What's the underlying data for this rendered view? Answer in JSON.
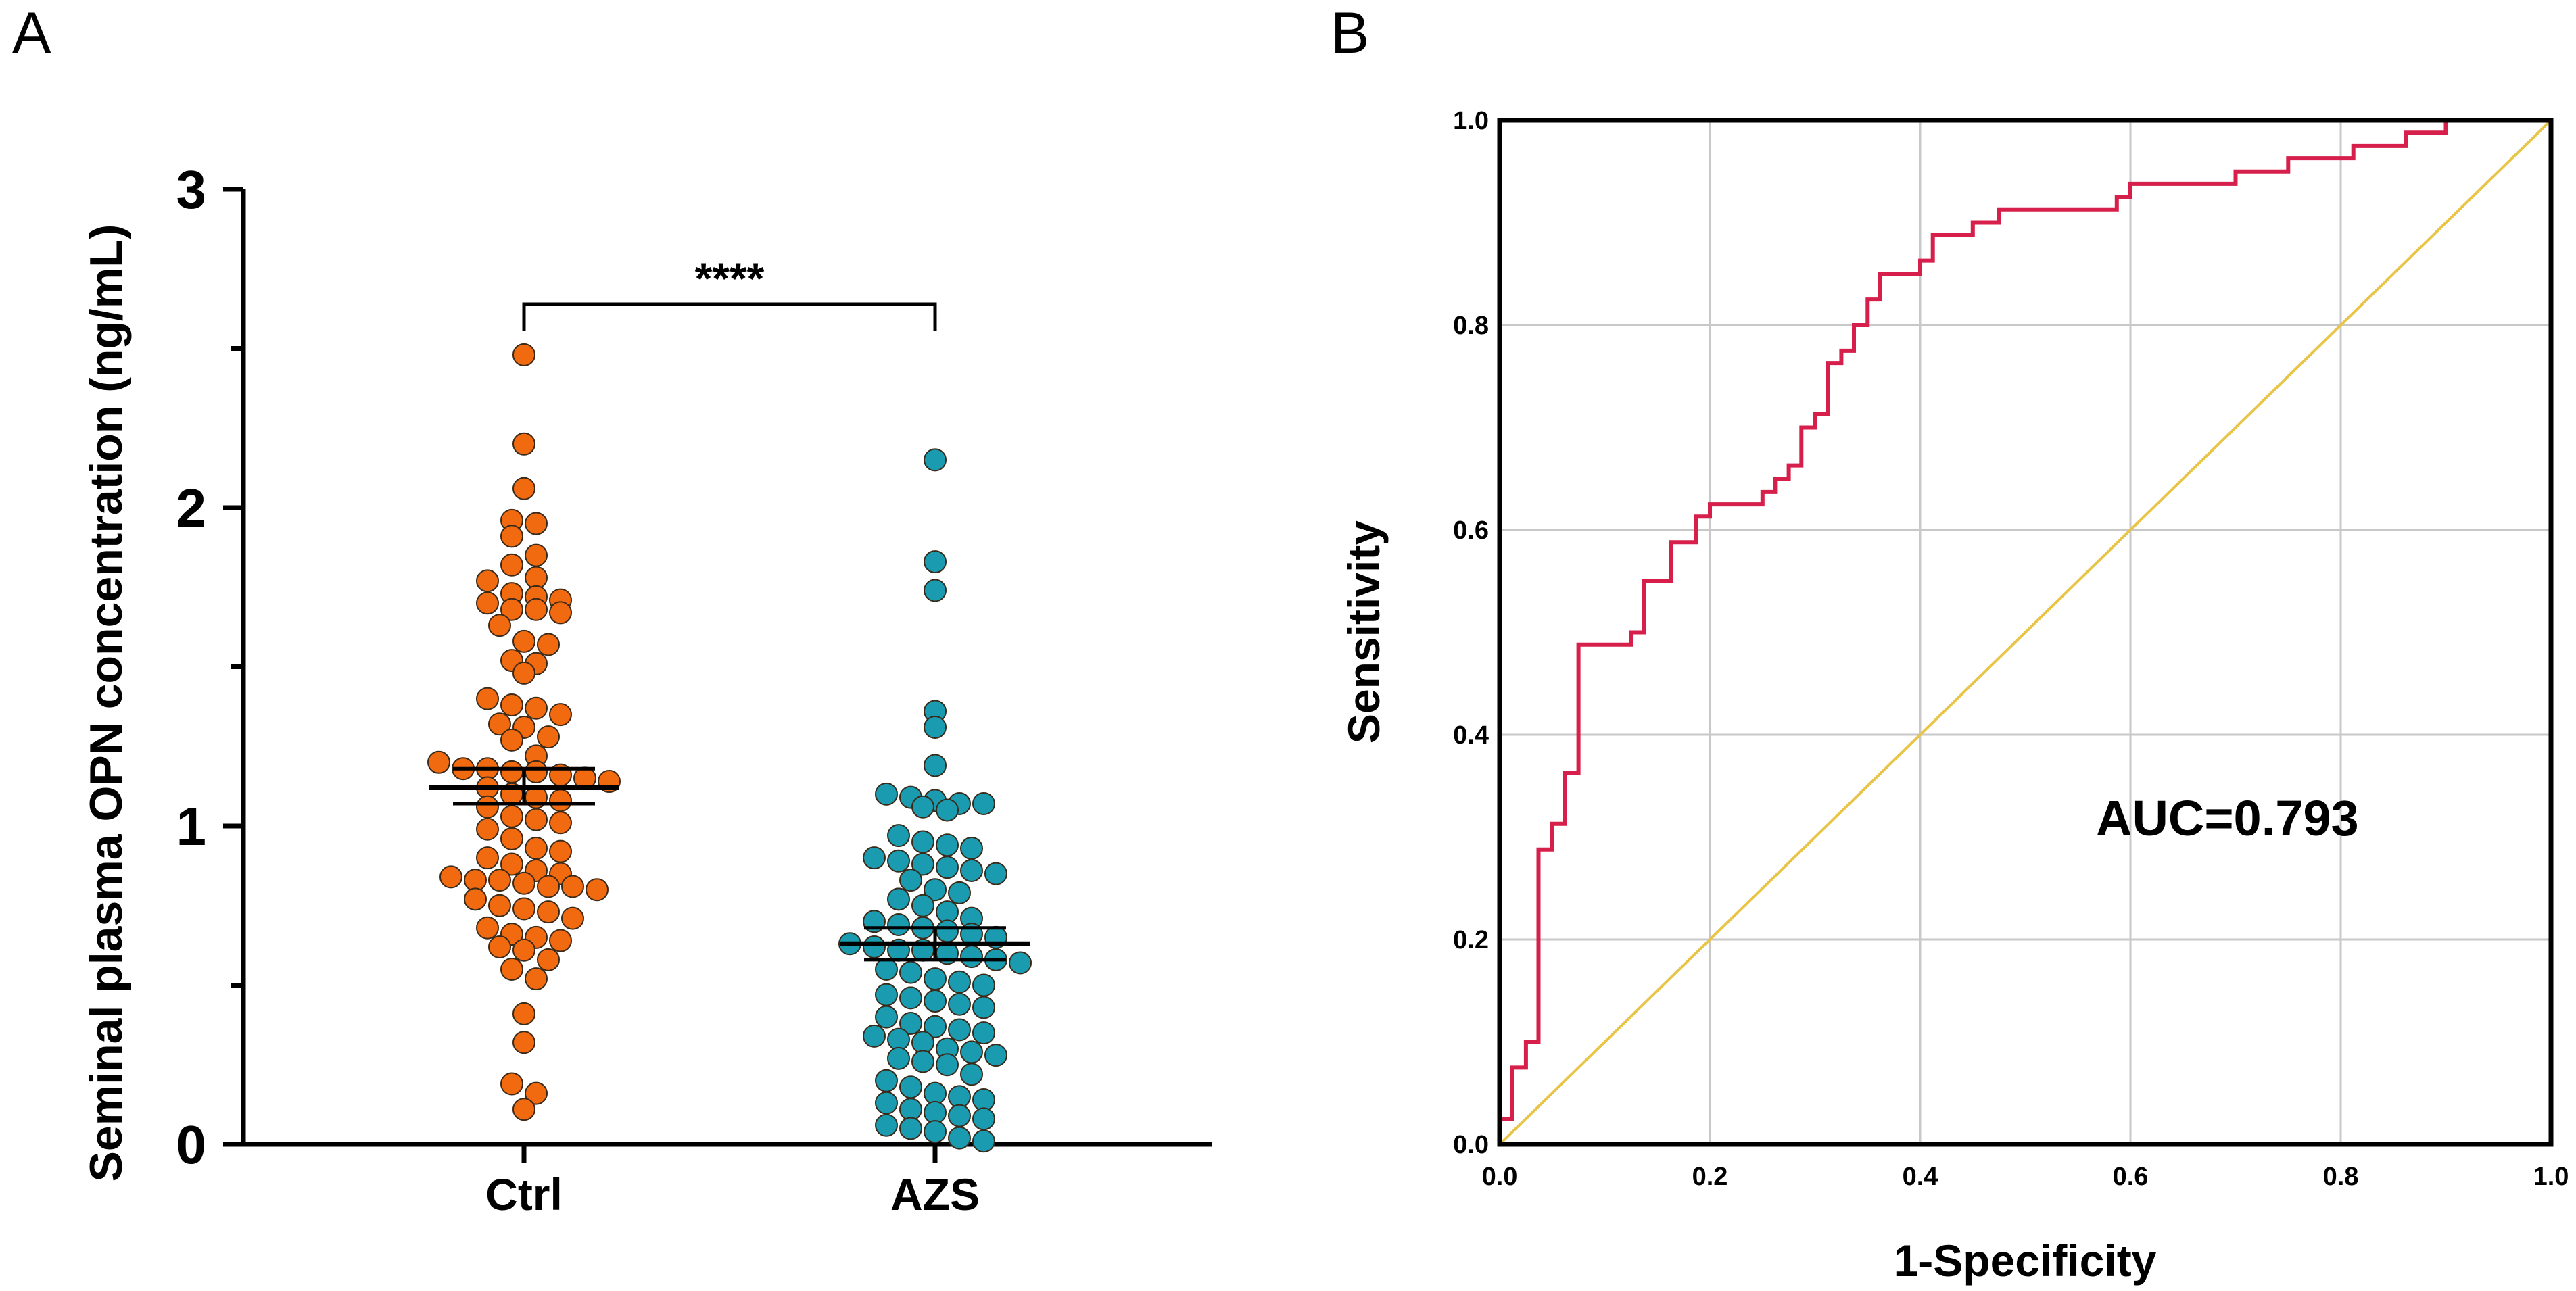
{
  "chart_data": [
    {
      "panel": "A",
      "type": "scatter",
      "subtype": "dot-plot-mean-sem",
      "ylabel": "Seminal plasma OPN concentration (ng/mL)",
      "xlabel": "",
      "ylim": [
        0,
        3
      ],
      "yticks": [
        "0",
        "1",
        "2",
        "3"
      ],
      "categories": [
        "Ctrl",
        "AZS"
      ],
      "significance": "****",
      "colors": {
        "Ctrl": "#f26a10",
        "AZS": "#1a9bb0"
      },
      "series": [
        {
          "name": "Ctrl",
          "mean": 1.12,
          "sem_low": 1.07,
          "sem_high": 1.18,
          "values": [
            2.48,
            2.2,
            2.06,
            1.96,
            1.95,
            1.91,
            1.85,
            1.82,
            1.78,
            1.77,
            1.73,
            1.72,
            1.71,
            1.7,
            1.68,
            1.68,
            1.67,
            1.63,
            1.58,
            1.57,
            1.52,
            1.51,
            1.48,
            1.4,
            1.38,
            1.37,
            1.35,
            1.32,
            1.31,
            1.28,
            1.27,
            1.22,
            1.2,
            1.18,
            1.18,
            1.17,
            1.17,
            1.16,
            1.15,
            1.14,
            1.12,
            1.1,
            1.09,
            1.08,
            1.06,
            1.03,
            1.02,
            1.01,
            0.99,
            0.96,
            0.93,
            0.92,
            0.9,
            0.88,
            0.86,
            0.85,
            0.84,
            0.83,
            0.83,
            0.82,
            0.81,
            0.81,
            0.8,
            0.77,
            0.75,
            0.74,
            0.73,
            0.71,
            0.68,
            0.66,
            0.65,
            0.64,
            0.62,
            0.61,
            0.58,
            0.55,
            0.52,
            0.41,
            0.32,
            0.19,
            0.16,
            0.11
          ]
        },
        {
          "name": "AZS",
          "mean": 0.63,
          "sem_low": 0.58,
          "sem_high": 0.68,
          "values": [
            2.15,
            1.83,
            1.74,
            1.36,
            1.31,
            1.19,
            1.1,
            1.09,
            1.08,
            1.07,
            1.07,
            1.06,
            1.05,
            0.97,
            0.95,
            0.94,
            0.93,
            0.9,
            0.89,
            0.88,
            0.87,
            0.86,
            0.85,
            0.83,
            0.8,
            0.79,
            0.77,
            0.75,
            0.73,
            0.71,
            0.7,
            0.69,
            0.68,
            0.67,
            0.66,
            0.65,
            0.63,
            0.62,
            0.61,
            0.61,
            0.6,
            0.59,
            0.58,
            0.57,
            0.55,
            0.54,
            0.52,
            0.51,
            0.5,
            0.47,
            0.46,
            0.45,
            0.44,
            0.43,
            0.4,
            0.38,
            0.37,
            0.36,
            0.35,
            0.34,
            0.33,
            0.32,
            0.3,
            0.29,
            0.28,
            0.27,
            0.26,
            0.25,
            0.22,
            0.2,
            0.18,
            0.16,
            0.15,
            0.14,
            0.13,
            0.11,
            0.1,
            0.09,
            0.08,
            0.06,
            0.05,
            0.04,
            0.02,
            0.01
          ]
        }
      ]
    },
    {
      "panel": "B",
      "type": "line",
      "subtype": "roc",
      "xlabel": "1-Specificity",
      "ylabel": "Sensitivity",
      "xlim": [
        0,
        1
      ],
      "ylim": [
        0,
        1
      ],
      "xticks": [
        "0.0",
        "0.2",
        "0.4",
        "0.6",
        "0.8",
        "1.0"
      ],
      "yticks": [
        "0.0",
        "0.2",
        "0.4",
        "0.6",
        "0.8",
        "1.0"
      ],
      "grid": true,
      "annotation": "AUC=0.793",
      "colors": {
        "roc": "#d61f4a",
        "reference": "#e8c547"
      },
      "series": [
        {
          "name": "ROC",
          "x": [
            0,
            0,
            0.012,
            0.012,
            0.025,
            0.025,
            0.037,
            0.037,
            0.05,
            0.05,
            0.062,
            0.062,
            0.075,
            0.075,
            0.125,
            0.125,
            0.137,
            0.137,
            0.163,
            0.163,
            0.187,
            0.187,
            0.2,
            0.2,
            0.25,
            0.25,
            0.262,
            0.262,
            0.275,
            0.275,
            0.287,
            0.287,
            0.3,
            0.3,
            0.312,
            0.312,
            0.325,
            0.325,
            0.337,
            0.337,
            0.35,
            0.35,
            0.362,
            0.362,
            0.375,
            0.375,
            0.4,
            0.4,
            0.412,
            0.412,
            0.45,
            0.45,
            0.475,
            0.475,
            0.587,
            0.587,
            0.6,
            0.6,
            0.7,
            0.7,
            0.75,
            0.75,
            0.812,
            0.812,
            0.85,
            0.85,
            0.862,
            0.862,
            0.9,
            0.9,
            1.0
          ],
          "y": [
            0,
            0.025,
            0.025,
            0.075,
            0.075,
            0.1,
            0.1,
            0.288,
            0.288,
            0.313,
            0.313,
            0.363,
            0.363,
            0.488,
            0.488,
            0.5,
            0.5,
            0.55,
            0.55,
            0.588,
            0.588,
            0.613,
            0.613,
            0.625,
            0.625,
            0.637,
            0.637,
            0.65,
            0.65,
            0.663,
            0.663,
            0.7,
            0.7,
            0.713,
            0.713,
            0.763,
            0.763,
            0.775,
            0.775,
            0.8,
            0.8,
            0.825,
            0.825,
            0.85,
            0.85,
            0.85,
            0.85,
            0.863,
            0.863,
            0.888,
            0.888,
            0.9,
            0.9,
            0.913,
            0.913,
            0.925,
            0.925,
            0.938,
            0.938,
            0.95,
            0.95,
            0.963,
            0.963,
            0.975,
            0.975,
            0.975,
            0.975,
            0.988,
            0.988,
            1.0,
            1.0
          ]
        },
        {
          "name": "Reference",
          "x": [
            0,
            1
          ],
          "y": [
            0,
            1
          ]
        }
      ]
    }
  ]
}
